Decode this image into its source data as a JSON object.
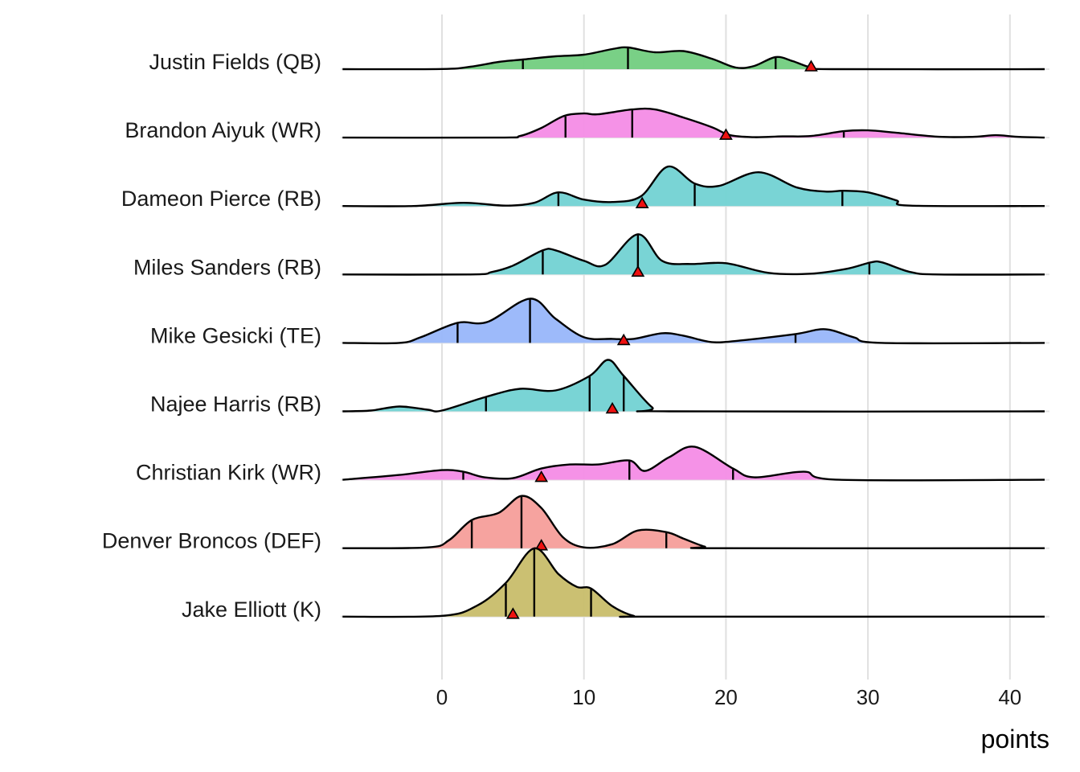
{
  "chart_data": {
    "type": "ridgeline",
    "title": "",
    "xlabel": "points",
    "ylabel": "",
    "xlim": [
      -7,
      42.5
    ],
    "x_ticks": [
      0,
      10,
      20,
      30,
      40
    ],
    "x_tick_labels": [
      "0",
      "10",
      "20",
      "30",
      "40"
    ],
    "grid": true,
    "marker": "red triangle",
    "series": [
      {
        "name": "Justin Fields (QB)",
        "color": "#72CE7F",
        "density": [
          [
            -7,
            0
          ],
          [
            0,
            0.2
          ],
          [
            2,
            3
          ],
          [
            4,
            9
          ],
          [
            5.7,
            12
          ],
          [
            8,
            16
          ],
          [
            10,
            18
          ],
          [
            12,
            25
          ],
          [
            13.1,
            27
          ],
          [
            15,
            21
          ],
          [
            17,
            22.5
          ],
          [
            19,
            13
          ],
          [
            20.7,
            2
          ],
          [
            22,
            4
          ],
          [
            23.5,
            15
          ],
          [
            24.7,
            10
          ],
          [
            26,
            2
          ],
          [
            27.5,
            0
          ],
          [
            42.5,
            0
          ]
        ],
        "quantiles": [
          5.7,
          13.1,
          23.5
        ],
        "marker": 26
      },
      {
        "name": "Brandon Aiyuk (WR)",
        "color": "#F48CE6",
        "density": [
          [
            -7,
            0
          ],
          [
            4,
            0
          ],
          [
            5.5,
            2
          ],
          [
            7,
            12
          ],
          [
            8.6,
            27
          ],
          [
            10,
            30
          ],
          [
            11,
            29
          ],
          [
            13.4,
            35
          ],
          [
            15,
            35
          ],
          [
            17,
            25
          ],
          [
            19,
            13
          ],
          [
            20.3,
            3
          ],
          [
            22,
            0.5
          ],
          [
            24,
            1.5
          ],
          [
            26,
            2
          ],
          [
            28.3,
            8
          ],
          [
            30,
            9
          ],
          [
            32,
            6
          ],
          [
            35,
            1
          ],
          [
            37.5,
            1
          ],
          [
            39,
            3
          ],
          [
            40.5,
            1
          ],
          [
            42.5,
            0
          ]
        ],
        "quantiles": [
          8.7,
          13.4,
          28.3
        ],
        "marker": 20
      },
      {
        "name": "Dameon Pierce (RB)",
        "color": "#72D2D3",
        "density": [
          [
            -7,
            0
          ],
          [
            -2,
            0
          ],
          [
            1.5,
            4
          ],
          [
            4.5,
            0.5
          ],
          [
            6.5,
            4
          ],
          [
            8.2,
            17
          ],
          [
            10,
            8
          ],
          [
            12,
            5
          ],
          [
            14,
            12
          ],
          [
            15.9,
            49
          ],
          [
            17.8,
            28
          ],
          [
            19.5,
            25
          ],
          [
            22.3,
            42
          ],
          [
            25,
            23
          ],
          [
            27,
            18
          ],
          [
            28.3,
            19
          ],
          [
            30,
            17
          ],
          [
            32,
            7
          ],
          [
            33,
            0.5
          ],
          [
            42.5,
            0
          ]
        ],
        "quantiles": [
          8.2,
          17.8,
          28.2
        ],
        "marker": 14.1
      },
      {
        "name": "Miles Sanders (RB)",
        "color": "#72D2D3",
        "density": [
          [
            -7,
            0
          ],
          [
            2,
            0
          ],
          [
            3.5,
            3
          ],
          [
            5,
            11
          ],
          [
            7.1,
            30
          ],
          [
            8,
            30
          ],
          [
            10,
            17
          ],
          [
            11.5,
            12
          ],
          [
            13.8,
            50
          ],
          [
            15.5,
            17
          ],
          [
            17.5,
            13
          ],
          [
            20,
            14
          ],
          [
            23,
            2
          ],
          [
            26,
            1
          ],
          [
            28.5,
            7
          ],
          [
            30.2,
            15
          ],
          [
            31,
            15
          ],
          [
            33,
            3
          ],
          [
            35,
            0
          ],
          [
            42.5,
            0
          ]
        ],
        "quantiles": [
          7.1,
          13.8,
          30.1
        ],
        "marker": 13.8
      },
      {
        "name": "Mike Gesicki (TE)",
        "color": "#98B6FA",
        "density": [
          [
            -7,
            0
          ],
          [
            -3,
            0
          ],
          [
            -1.5,
            7
          ],
          [
            1.1,
            25
          ],
          [
            3.2,
            26
          ],
          [
            6.2,
            55
          ],
          [
            8,
            30
          ],
          [
            10,
            7
          ],
          [
            12,
            5
          ],
          [
            13.5,
            5
          ],
          [
            15.5,
            12
          ],
          [
            17,
            9
          ],
          [
            19,
            1
          ],
          [
            21,
            3
          ],
          [
            24.9,
            11
          ],
          [
            27,
            17
          ],
          [
            29,
            7
          ],
          [
            31,
            0
          ],
          [
            42.5,
            0
          ]
        ],
        "quantiles": [
          1.1,
          6.2,
          24.9
        ],
        "marker": 12.8
      },
      {
        "name": "Najee Harris (RB)",
        "color": "#72D2D3",
        "density": [
          [
            -7,
            0
          ],
          [
            -5,
            1
          ],
          [
            -3,
            6
          ],
          [
            -1,
            2
          ],
          [
            0,
            1
          ],
          [
            3.1,
            18
          ],
          [
            5.5,
            28
          ],
          [
            8,
            26
          ],
          [
            10.4,
            44
          ],
          [
            11.7,
            64
          ],
          [
            12.8,
            44
          ],
          [
            14.8,
            5
          ],
          [
            16,
            0
          ],
          [
            42.5,
            0
          ]
        ],
        "quantiles": [
          3.1,
          10.4,
          12.8
        ],
        "marker": 12
      },
      {
        "name": "Christian Kirk (WR)",
        "color": "#F48CE6",
        "density": [
          [
            -7,
            0
          ],
          [
            -3,
            6
          ],
          [
            0,
            12
          ],
          [
            1.5,
            10
          ],
          [
            3,
            3
          ],
          [
            5,
            2
          ],
          [
            7,
            14
          ],
          [
            9,
            19
          ],
          [
            11,
            19
          ],
          [
            13.2,
            24
          ],
          [
            14.3,
            11
          ],
          [
            16,
            28
          ],
          [
            17.8,
            41
          ],
          [
            20.5,
            14
          ],
          [
            22,
            3
          ],
          [
            25.5,
            10
          ],
          [
            28,
            0
          ],
          [
            42.5,
            0
          ]
        ],
        "quantiles": [
          1.5,
          13.2,
          20.5
        ],
        "marker": 7
      },
      {
        "name": "Denver Broncos (DEF)",
        "color": "#F69E9A",
        "density": [
          [
            -7,
            0
          ],
          [
            -1,
            1
          ],
          [
            0.5,
            10
          ],
          [
            2.1,
            35
          ],
          [
            4,
            44
          ],
          [
            5.6,
            65
          ],
          [
            7,
            50
          ],
          [
            8.5,
            14
          ],
          [
            10,
            1
          ],
          [
            12,
            5
          ],
          [
            13.8,
            22
          ],
          [
            15.8,
            20
          ],
          [
            17,
            12
          ],
          [
            18.5,
            2
          ],
          [
            19.5,
            0
          ],
          [
            42.5,
            0
          ]
        ],
        "quantiles": [
          2.1,
          5.6,
          15.8
        ],
        "marker": 7
      },
      {
        "name": "Jake Elliott (K)",
        "color": "#C8BD6A",
        "density": [
          [
            -7,
            0
          ],
          [
            0,
            1
          ],
          [
            2.5,
            14
          ],
          [
            4.5,
            42
          ],
          [
            6.5,
            85
          ],
          [
            8.2,
            53
          ],
          [
            9.5,
            37
          ],
          [
            10.5,
            35
          ],
          [
            12,
            13
          ],
          [
            13.5,
            1
          ],
          [
            15,
            0
          ],
          [
            42.5,
            0
          ]
        ],
        "quantiles": [
          4.5,
          6.5,
          10.5
        ],
        "marker": 5
      }
    ]
  }
}
